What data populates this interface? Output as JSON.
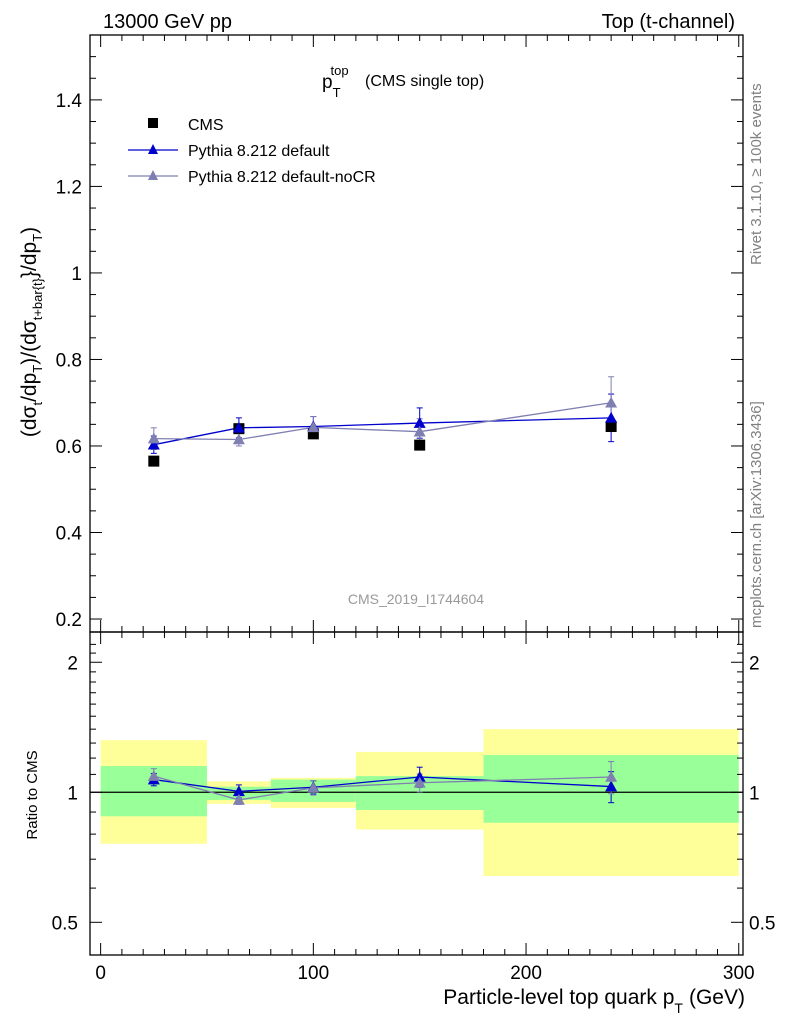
{
  "header": {
    "left": "13000 GeV pp",
    "right": "Top (t-channel)"
  },
  "side_labels": {
    "rivet": "Rivet 3.1.10, ≥ 100k events",
    "mcplots": "mcplots.cern.ch [arXiv:1306.3436]"
  },
  "chart_data": {
    "type": "scatter",
    "title_main": "p",
    "title_sup": "top",
    "title_sub": "T",
    "title_note": "(CMS single top)",
    "watermark": "CMS_2019_I1744604",
    "ylabel_main": {
      "p1": "(dσ",
      "s1": "t",
      "p2": "/dp",
      "s2": "T",
      "p3": ")/(dσ",
      "s3": "t+bar{t}",
      "p4": "}/dp",
      "s4": "T",
      "p5": ")"
    },
    "ylabel_ratio": "Ratio to CMS",
    "xlabel": {
      "text": "Particle-level top quark p",
      "sub": "T",
      "unit": "(GeV)"
    },
    "xlim": [
      -5,
      302
    ],
    "ylim": [
      0.17,
      1.55
    ],
    "ratio_ylim": [
      0.42,
      2.35
    ],
    "x_ticks": [
      {
        "value": 0,
        "label": "0"
      },
      {
        "value": 100,
        "label": "100"
      },
      {
        "value": 200,
        "label": "200"
      },
      {
        "value": 300,
        "label": "300"
      }
    ],
    "y_ticks": [
      {
        "value": 0.2,
        "label": "0.2"
      },
      {
        "value": 0.4,
        "label": "0.4"
      },
      {
        "value": 0.6,
        "label": "0.6"
      },
      {
        "value": 0.8,
        "label": "0.8"
      },
      {
        "value": 1.0,
        "label": "1"
      },
      {
        "value": 1.2,
        "label": "1.2"
      },
      {
        "value": 1.4,
        "label": "1.4"
      }
    ],
    "ratio_ticks": [
      {
        "value": 0.5,
        "label": "0.5"
      },
      {
        "value": 1.0,
        "label": "1"
      },
      {
        "value": 2.0,
        "label": "2"
      }
    ],
    "bins": [
      {
        "x": 25,
        "lo": 0,
        "hi": 50
      },
      {
        "x": 65,
        "lo": 50,
        "hi": 80
      },
      {
        "x": 100,
        "lo": 80,
        "hi": 120
      },
      {
        "x": 150,
        "lo": 120,
        "hi": 180
      },
      {
        "x": 240,
        "lo": 180,
        "hi": 300
      }
    ],
    "data_series": {
      "name": "CMS",
      "color": "#000000",
      "values": [
        0.565,
        0.64,
        0.628,
        0.602,
        0.645
      ],
      "errors": [
        0.005,
        0.005,
        0.006,
        0.006,
        0.007
      ]
    },
    "bands": {
      "inner_color": "#99ff99",
      "outer_color": "#ffff99",
      "inner": [
        [
          0.88,
          1.15
        ],
        [
          0.96,
          1.03
        ],
        [
          0.95,
          1.07
        ],
        [
          0.91,
          1.09
        ],
        [
          0.85,
          1.22
        ]
      ],
      "outer": [
        [
          0.76,
          1.32
        ],
        [
          0.94,
          1.06
        ],
        [
          0.92,
          1.08
        ],
        [
          0.82,
          1.24
        ],
        [
          0.64,
          1.4
        ]
      ]
    },
    "series": [
      {
        "name": "Pythia 8.212 default",
        "color": "#0000cc",
        "values": [
          0.603,
          0.642,
          0.645,
          0.653,
          0.665
        ],
        "errors": [
          0.02,
          0.023,
          0.023,
          0.035,
          0.055
        ],
        "ratios": [
          1.07,
          1.005,
          1.027,
          1.085,
          1.031
        ],
        "ratio_errors": [
          0.035,
          0.035,
          0.036,
          0.058,
          0.085
        ]
      },
      {
        "name": "Pythia 8.212 default-noCR",
        "color": "#7f7fb2",
        "values": [
          0.617,
          0.615,
          0.643,
          0.633,
          0.7
        ],
        "errors": [
          0.025,
          0.015,
          0.025,
          0.03,
          0.06
        ],
        "ratios": [
          1.09,
          0.96,
          1.024,
          1.052,
          1.085
        ],
        "ratio_errors": [
          0.044,
          0.023,
          0.039,
          0.05,
          0.093
        ]
      }
    ]
  }
}
